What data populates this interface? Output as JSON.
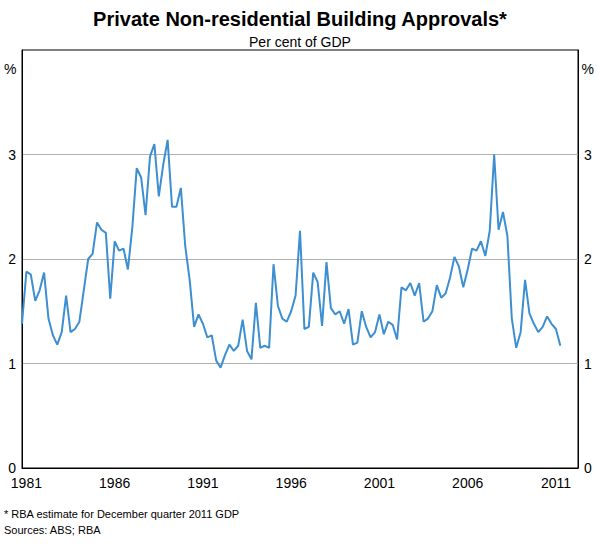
{
  "chart_data": {
    "type": "line",
    "title": "Private Non-residential Building Approvals*",
    "subtitle": "Per cent of GDP",
    "y_label": "%",
    "notes": [
      "* RBA estimate for December quarter 2011 GDP",
      "Sources: ABS; RBA"
    ],
    "color": "#3d8fd1",
    "grid": true,
    "ylim": [
      0,
      4
    ],
    "yticks": [
      0,
      1,
      2,
      3
    ],
    "categories": [
      null,
      "1981",
      null,
      null,
      null,
      null,
      null,
      null,
      null,
      null,
      null,
      null,
      null,
      null,
      null,
      null,
      null,
      null,
      null,
      null,
      null,
      "1986",
      null,
      null,
      null,
      null,
      null,
      null,
      null,
      null,
      null,
      null,
      null,
      null,
      null,
      null,
      null,
      null,
      null,
      null,
      null,
      "1991",
      null,
      null,
      null,
      null,
      null,
      null,
      null,
      null,
      null,
      null,
      null,
      null,
      null,
      null,
      null,
      null,
      null,
      null,
      null,
      "1996",
      null,
      null,
      null,
      null,
      null,
      null,
      null,
      null,
      null,
      null,
      null,
      null,
      null,
      null,
      null,
      null,
      null,
      null,
      null,
      "2001",
      null,
      null,
      null,
      null,
      null,
      null,
      null,
      null,
      null,
      null,
      null,
      null,
      null,
      null,
      null,
      null,
      null,
      null,
      null,
      "2006",
      null,
      null,
      null,
      null,
      null,
      null,
      null,
      null,
      null,
      null,
      null,
      null,
      null,
      null,
      null,
      null,
      null,
      null,
      null,
      "2011",
      null,
      null,
      null,
      null,
      null
    ],
    "values": [
      1.38,
      1.88,
      1.85,
      1.6,
      1.7,
      1.87,
      1.43,
      1.27,
      1.18,
      1.3,
      1.65,
      1.3,
      1.33,
      1.4,
      1.7,
      2.0,
      2.05,
      2.35,
      2.28,
      2.25,
      1.62,
      2.17,
      2.08,
      2.1,
      1.9,
      2.3,
      2.87,
      2.78,
      2.42,
      2.98,
      3.1,
      2.6,
      2.9,
      3.14,
      2.5,
      2.5,
      2.68,
      2.12,
      1.8,
      1.35,
      1.47,
      1.38,
      1.25,
      1.27,
      1.03,
      0.96,
      1.08,
      1.18,
      1.12,
      1.17,
      1.42,
      1.12,
      1.04,
      1.58,
      1.15,
      1.17,
      1.15,
      1.95,
      1.55,
      1.43,
      1.4,
      1.5,
      1.65,
      2.27,
      1.33,
      1.35,
      1.87,
      1.78,
      1.36,
      1.97,
      1.53,
      1.47,
      1.5,
      1.38,
      1.52,
      1.18,
      1.2,
      1.5,
      1.35,
      1.25,
      1.3,
      1.47,
      1.28,
      1.4,
      1.37,
      1.23,
      1.73,
      1.7,
      1.77,
      1.65,
      1.77,
      1.4,
      1.43,
      1.5,
      1.75,
      1.63,
      1.67,
      1.82,
      2.02,
      1.93,
      1.73,
      1.9,
      2.1,
      2.08,
      2.17,
      2.03,
      2.27,
      3.0,
      2.28,
      2.45,
      2.22,
      1.43,
      1.15,
      1.3,
      1.8,
      1.48,
      1.38,
      1.3,
      1.35,
      1.45,
      1.38,
      1.33,
      1.17,
      null,
      null,
      null,
      null
    ]
  }
}
